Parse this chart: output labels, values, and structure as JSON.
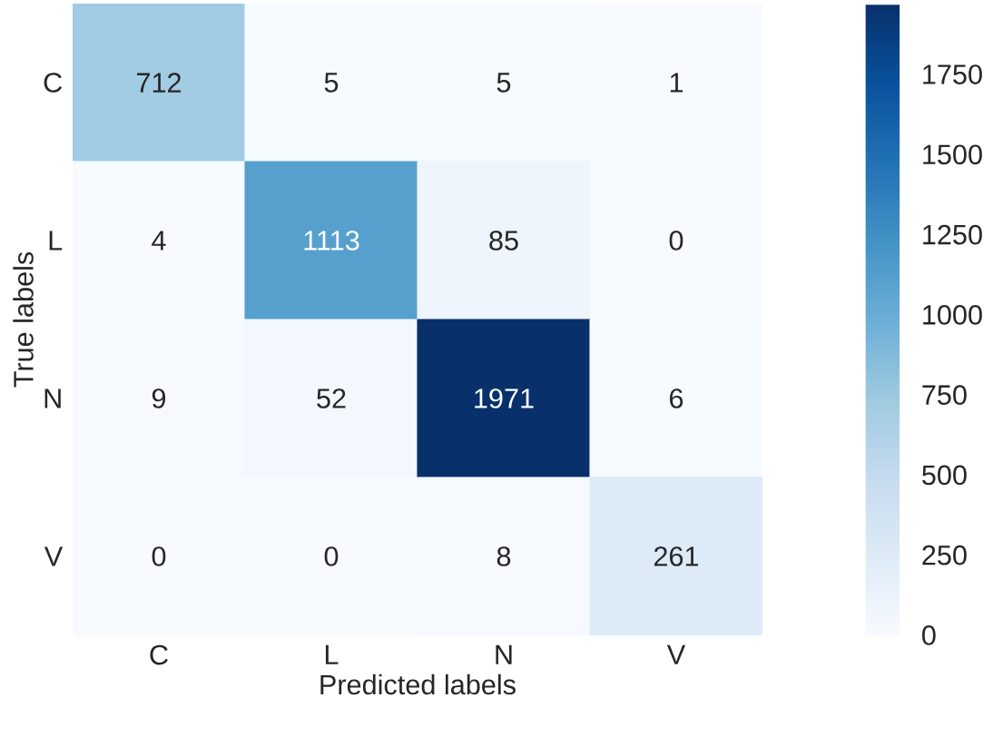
{
  "chart_data": {
    "type": "heatmap",
    "xlabel": "Predicted labels",
    "ylabel": "True labels",
    "categories": [
      "C",
      "L",
      "N",
      "V"
    ],
    "y_categories": [
      "C",
      "L",
      "N",
      "V"
    ],
    "cells": [
      [
        712,
        5,
        5,
        1
      ],
      [
        4,
        1113,
        85,
        0
      ],
      [
        9,
        52,
        1971,
        6
      ],
      [
        0,
        0,
        8,
        261
      ]
    ],
    "clim": [
      0,
      1971
    ],
    "cticks": [
      0,
      250,
      500,
      750,
      1000,
      1250,
      1500,
      1750
    ],
    "data_labels": true
  }
}
